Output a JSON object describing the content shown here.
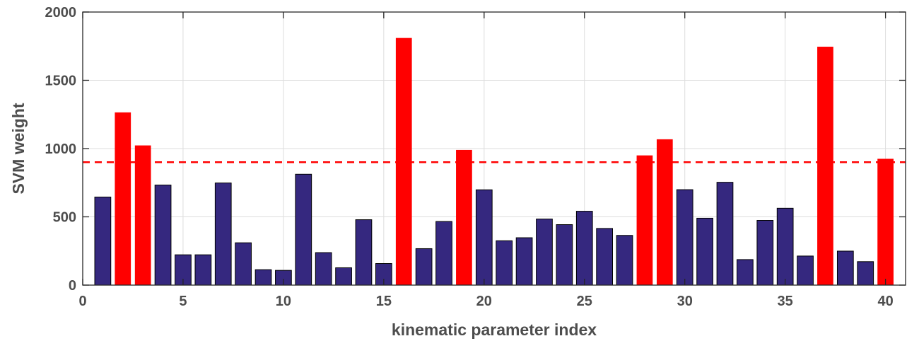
{
  "chart_data": {
    "type": "bar",
    "title": "",
    "xlabel": "kinematic parameter index",
    "ylabel": "SVM weight",
    "xlim": [
      0,
      41
    ],
    "ylim": [
      0,
      2000
    ],
    "xticks": [
      0,
      5,
      10,
      15,
      20,
      25,
      30,
      35,
      40
    ],
    "yticks": [
      0,
      500,
      1000,
      1500,
      2000
    ],
    "grid": true,
    "x": [
      1,
      2,
      3,
      4,
      5,
      6,
      7,
      8,
      9,
      10,
      11,
      12,
      13,
      14,
      15,
      16,
      17,
      18,
      19,
      20,
      21,
      22,
      23,
      24,
      25,
      26,
      27,
      28,
      29,
      30,
      31,
      32,
      33,
      34,
      35,
      36,
      37,
      38,
      39,
      40
    ],
    "values": [
      645,
      1265,
      1023,
      733,
      222,
      222,
      748,
      310,
      113,
      108,
      812,
      238,
      127,
      479,
      158,
      1810,
      267,
      466,
      990,
      698,
      325,
      347,
      484,
      443,
      541,
      415,
      364,
      950,
      1068,
      699,
      490,
      753,
      187,
      474,
      563,
      213,
      1746,
      249,
      172,
      925
    ],
    "threshold": 900,
    "colors": {
      "below_threshold": "#35287f",
      "above_threshold": "#ff0000",
      "threshold_line": "#ff0000",
      "grid": "#dddddd",
      "axis": "#262626"
    }
  }
}
